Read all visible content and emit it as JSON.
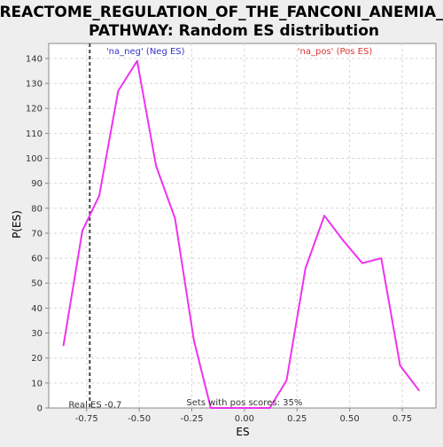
{
  "chart_data": {
    "type": "line",
    "title_lines": [
      "REACTOME_REGULATION_OF_THE_FANCONI_ANEMIA_",
      "PATHWAY: Random ES distribution"
    ],
    "xlabel": "ES",
    "ylabel": "P(ES)",
    "xlim": [
      -0.93,
      0.91
    ],
    "ylim": [
      0,
      146
    ],
    "x_ticks": [
      -0.75,
      -0.5,
      -0.25,
      0.0,
      0.25,
      0.5,
      0.75
    ],
    "x_tick_labels": [
      "-0.75",
      "-0.50",
      "-0.25",
      "0.00",
      "0.25",
      "0.50",
      "0.75"
    ],
    "y_ticks": [
      0,
      10,
      20,
      30,
      40,
      50,
      60,
      70,
      80,
      90,
      100,
      110,
      120,
      130,
      140
    ],
    "grid": true,
    "series": [
      {
        "color": "#ee33ee",
        "x": [
          -0.86,
          -0.77,
          -0.69,
          -0.6,
          -0.51,
          -0.42,
          -0.33,
          -0.24,
          -0.16,
          -0.07,
          0.02,
          0.12,
          0.2,
          0.29,
          0.38,
          0.47,
          0.56,
          0.65,
          0.74,
          0.83
        ],
        "y": [
          25,
          71,
          85,
          127,
          139,
          97,
          76,
          27,
          0,
          0,
          0,
          0,
          11,
          56,
          77,
          67,
          58,
          60,
          17,
          7
        ]
      }
    ],
    "real_es": {
      "x": -0.735,
      "label": "Real ES -0.7",
      "color": "#444444"
    },
    "annotations": {
      "neg_label": "'na_neg' (Neg ES)",
      "neg_color": "#3333cc",
      "pos_label": "'na_pos' (Pos ES)",
      "pos_color": "#dd3333",
      "pos_scores_text": "Sets with pos scores: 35%"
    }
  }
}
